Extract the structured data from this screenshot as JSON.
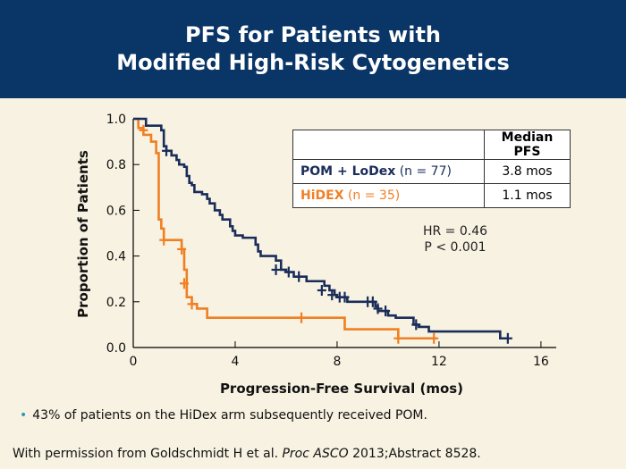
{
  "header": {
    "title_line1": "PFS for Patients with",
    "title_line2": "Modified High-Risk Cytogenetics"
  },
  "colors": {
    "pom": "#1a2d5a",
    "hidex": "#f07f24",
    "header_bg": "#0a3567",
    "background": "#f7f2e1"
  },
  "legend": {
    "header": "Median PFS",
    "rows": [
      {
        "name": "POM + LoDex",
        "n": "(n = 77)",
        "median": "3.8 mos"
      },
      {
        "name": "HiDEX",
        "n": "(n = 35)",
        "median": "1.1 mos"
      }
    ]
  },
  "stats": {
    "hr": "HR = 0.46",
    "p": "P < 0.001"
  },
  "bullet": "43% of patients on the HiDex arm subsequently received POM.",
  "credit": {
    "prefix": "With permission from Goldschmidt H et al. ",
    "journal": "Proc ASCO",
    "suffix": " 2013;Abstract 8528."
  },
  "chart_data": {
    "type": "line",
    "xlabel": "Progression-Free Survival (mos)",
    "ylabel": "Proportion of Patients",
    "xlim": [
      0,
      16
    ],
    "ylim": [
      0,
      1.0
    ],
    "xticks": [
      "0",
      "4",
      "8",
      "12",
      "16"
    ],
    "xtick_values": [
      0,
      4,
      8,
      12,
      16
    ],
    "yticks": [
      "0.0",
      "0.2",
      "0.4",
      "0.6",
      "0.8",
      "1.0"
    ],
    "ytick_values": [
      0,
      0.2,
      0.4,
      0.6,
      0.8,
      1.0
    ],
    "grid": false,
    "series": [
      {
        "name": "POM + LoDex",
        "step": [
          [
            0,
            1.0
          ],
          [
            0.5,
            0.97
          ],
          [
            1.1,
            0.95
          ],
          [
            1.2,
            0.88
          ],
          [
            1.3,
            0.86
          ],
          [
            1.5,
            0.84
          ],
          [
            1.7,
            0.82
          ],
          [
            1.8,
            0.8
          ],
          [
            2.0,
            0.79
          ],
          [
            2.1,
            0.75
          ],
          [
            2.2,
            0.72
          ],
          [
            2.3,
            0.71
          ],
          [
            2.4,
            0.68
          ],
          [
            2.7,
            0.67
          ],
          [
            2.9,
            0.65
          ],
          [
            3.0,
            0.63
          ],
          [
            3.2,
            0.6
          ],
          [
            3.4,
            0.58
          ],
          [
            3.5,
            0.56
          ],
          [
            3.8,
            0.53
          ],
          [
            3.9,
            0.51
          ],
          [
            4.0,
            0.49
          ],
          [
            4.3,
            0.48
          ],
          [
            4.8,
            0.45
          ],
          [
            4.9,
            0.42
          ],
          [
            5.0,
            0.4
          ],
          [
            5.6,
            0.38
          ],
          [
            5.8,
            0.34
          ],
          [
            6.0,
            0.33
          ],
          [
            6.3,
            0.31
          ],
          [
            6.8,
            0.29
          ],
          [
            7.5,
            0.27
          ],
          [
            7.7,
            0.25
          ],
          [
            7.9,
            0.23
          ],
          [
            8.0,
            0.22
          ],
          [
            8.4,
            0.2
          ],
          [
            9.5,
            0.18
          ],
          [
            9.6,
            0.16
          ],
          [
            10.0,
            0.14
          ],
          [
            10.3,
            0.13
          ],
          [
            11.0,
            0.1
          ],
          [
            11.2,
            0.09
          ],
          [
            11.6,
            0.07
          ],
          [
            14.4,
            0.04
          ],
          [
            14.7,
            0.04
          ]
        ],
        "censor": [
          [
            1.3,
            0.86
          ],
          [
            5.6,
            0.34
          ],
          [
            6.1,
            0.33
          ],
          [
            6.5,
            0.31
          ],
          [
            7.4,
            0.25
          ],
          [
            7.8,
            0.23
          ],
          [
            8.1,
            0.22
          ],
          [
            8.3,
            0.22
          ],
          [
            9.2,
            0.2
          ],
          [
            9.4,
            0.2
          ],
          [
            9.6,
            0.17
          ],
          [
            9.9,
            0.16
          ],
          [
            11.1,
            0.1
          ],
          [
            14.7,
            0.04
          ]
        ]
      },
      {
        "name": "HiDEX",
        "step": [
          [
            0,
            1.0
          ],
          [
            0.2,
            0.96
          ],
          [
            0.4,
            0.93
          ],
          [
            0.7,
            0.9
          ],
          [
            0.9,
            0.85
          ],
          [
            1.0,
            0.56
          ],
          [
            1.1,
            0.52
          ],
          [
            1.2,
            0.47
          ],
          [
            1.9,
            0.43
          ],
          [
            2.0,
            0.34
          ],
          [
            2.1,
            0.22
          ],
          [
            2.3,
            0.19
          ],
          [
            2.5,
            0.17
          ],
          [
            2.9,
            0.13
          ],
          [
            8.3,
            0.08
          ],
          [
            10.4,
            0.04
          ],
          [
            11.9,
            0.04
          ]
        ],
        "censor": [
          [
            0.4,
            0.95
          ],
          [
            1.2,
            0.47
          ],
          [
            1.9,
            0.43
          ],
          [
            2.0,
            0.28
          ],
          [
            2.3,
            0.19
          ],
          [
            6.6,
            0.13
          ],
          [
            10.4,
            0.04
          ],
          [
            11.8,
            0.04
          ]
        ]
      }
    ]
  }
}
